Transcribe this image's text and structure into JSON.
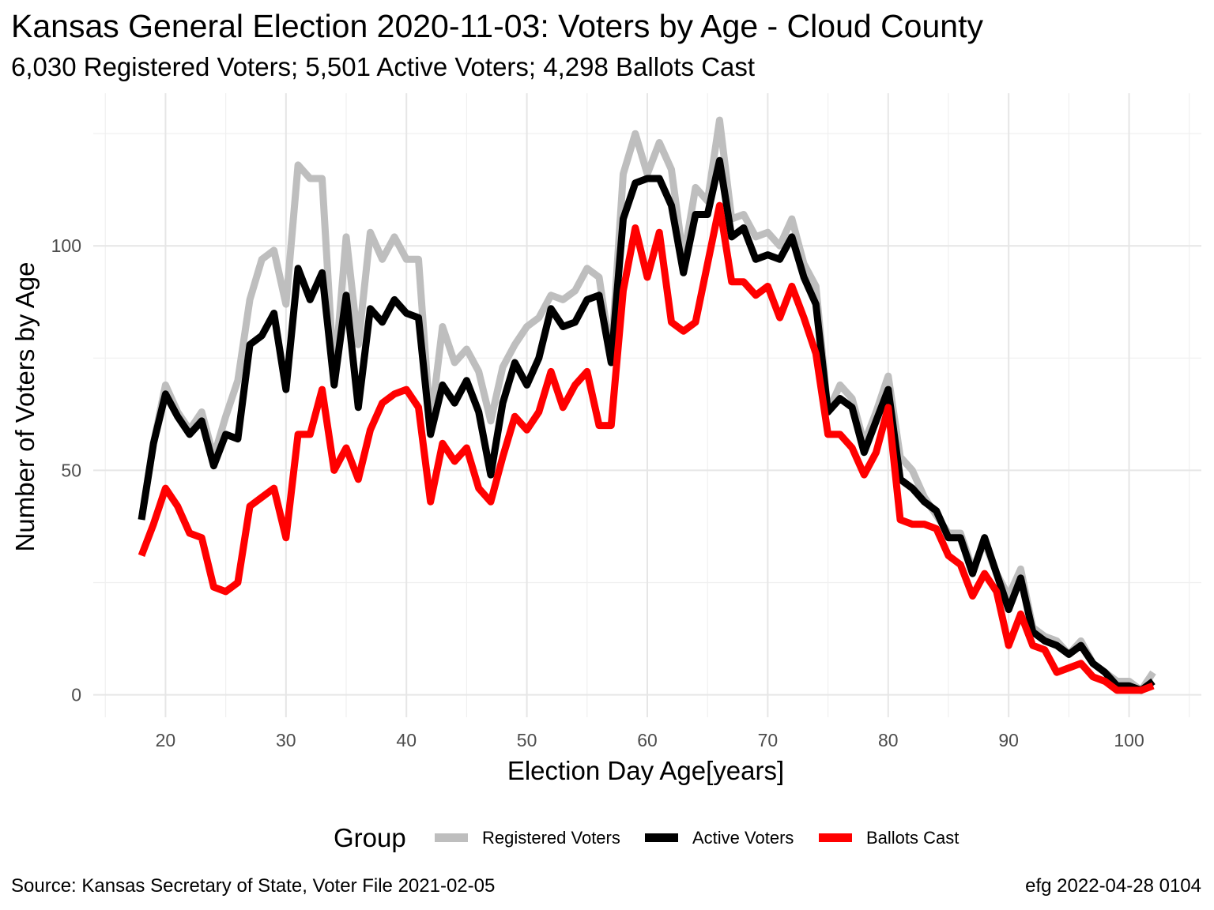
{
  "chart_data": {
    "type": "line",
    "title": "Kansas General Election 2020-11-03:  Voters by Age - Cloud County",
    "subtitle": "6,030 Registered Voters; 5,501 Active Voters; 4,298 Ballots Cast",
    "xlabel": "Election Day Age[years]",
    "ylabel": "Number of Voters by Age",
    "xlim": [
      14,
      106
    ],
    "ylim": [
      -5,
      134
    ],
    "x_ticks": [
      20,
      30,
      40,
      50,
      60,
      70,
      80,
      90,
      100
    ],
    "y_ticks": [
      0,
      50,
      100
    ],
    "grid": true,
    "legend_title": "Group",
    "legend_position": "bottom",
    "caption_left": "Source:  Kansas Secretary of State, Voter File  2021-02-05",
    "caption_right": "efg 2022-04-28 0104",
    "x": [
      18,
      19,
      20,
      21,
      22,
      23,
      24,
      25,
      26,
      27,
      28,
      29,
      30,
      31,
      32,
      33,
      34,
      35,
      36,
      37,
      38,
      39,
      40,
      41,
      42,
      43,
      44,
      45,
      46,
      47,
      48,
      49,
      50,
      51,
      52,
      53,
      54,
      55,
      56,
      57,
      58,
      59,
      60,
      61,
      62,
      63,
      64,
      65,
      66,
      67,
      68,
      69,
      70,
      71,
      72,
      73,
      74,
      75,
      76,
      77,
      78,
      79,
      80,
      81,
      82,
      83,
      84,
      85,
      86,
      87,
      88,
      89,
      90,
      91,
      92,
      93,
      94,
      95,
      96,
      97,
      98,
      99,
      100,
      101,
      102
    ],
    "series": [
      {
        "name": "Registered Voters",
        "color": "#bebebe",
        "values": [
          39,
          56,
          69,
          63,
          59,
          63,
          53,
          62,
          70,
          88,
          97,
          99,
          87,
          118,
          115,
          115,
          70,
          102,
          78,
          103,
          97,
          102,
          97,
          97,
          60,
          82,
          74,
          77,
          72,
          61,
          73,
          78,
          82,
          84,
          89,
          88,
          90,
          95,
          93,
          75,
          116,
          125,
          116,
          123,
          117,
          97,
          113,
          110,
          128,
          106,
          107,
          102,
          103,
          100,
          106,
          96,
          91,
          63,
          69,
          66,
          56,
          63,
          71,
          53,
          50,
          44,
          40,
          36,
          36,
          28,
          34,
          27,
          22,
          28,
          15,
          13,
          12,
          9,
          12,
          7,
          5,
          3,
          3,
          1,
          5
        ]
      },
      {
        "name": "Active Voters",
        "color": "#000000",
        "values": [
          39,
          56,
          67,
          62,
          58,
          61,
          51,
          58,
          57,
          78,
          80,
          85,
          68,
          95,
          88,
          94,
          69,
          89,
          64,
          86,
          83,
          88,
          85,
          84,
          58,
          69,
          65,
          70,
          63,
          49,
          65,
          74,
          69,
          75,
          86,
          82,
          83,
          88,
          89,
          74,
          106,
          114,
          115,
          115,
          109,
          94,
          107,
          107,
          119,
          102,
          104,
          97,
          98,
          97,
          102,
          93,
          87,
          63,
          66,
          64,
          54,
          61,
          68,
          48,
          46,
          43,
          41,
          35,
          35,
          27,
          35,
          27,
          19,
          26,
          14,
          12,
          11,
          9,
          11,
          7,
          5,
          2,
          2,
          1,
          3
        ]
      },
      {
        "name": "Ballots Cast",
        "color": "#ff0000",
        "values": [
          31,
          38,
          46,
          42,
          36,
          35,
          24,
          23,
          25,
          42,
          44,
          46,
          35,
          58,
          58,
          68,
          50,
          55,
          48,
          59,
          65,
          67,
          68,
          64,
          43,
          56,
          52,
          55,
          46,
          43,
          53,
          62,
          59,
          63,
          72,
          64,
          69,
          72,
          60,
          60,
          90,
          104,
          93,
          103,
          83,
          81,
          83,
          96,
          109,
          92,
          92,
          89,
          91,
          84,
          91,
          84,
          76,
          58,
          58,
          55,
          49,
          54,
          64,
          39,
          38,
          38,
          37,
          31,
          29,
          22,
          27,
          23,
          11,
          18,
          11,
          10,
          5,
          6,
          7,
          4,
          3,
          1,
          1,
          1,
          2
        ]
      }
    ]
  }
}
